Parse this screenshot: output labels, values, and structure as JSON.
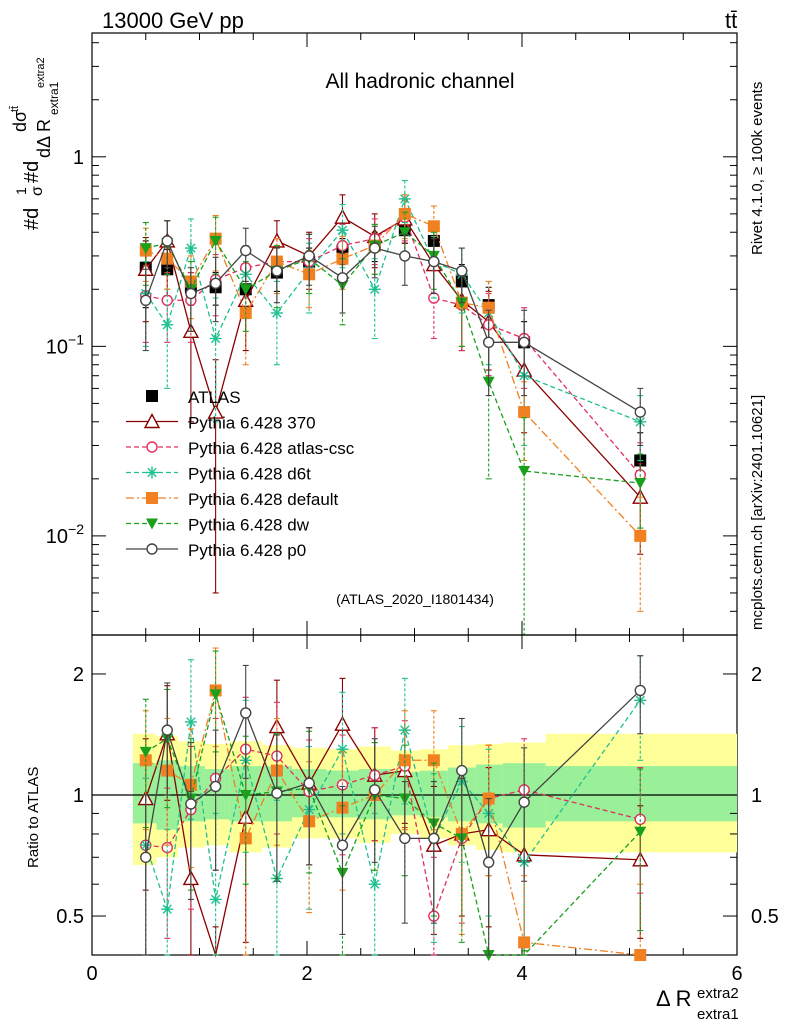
{
  "header": {
    "energy_label": "13000 GeV pp",
    "process_label": "tt̄"
  },
  "side_labels": {
    "rivet": "Rivet 4.1.0, ≥ 100k events",
    "mcplots": "mcplots.cern.ch [arXiv:2401.10621]"
  },
  "chart_data": [
    {
      "type": "line",
      "panel": "main",
      "title": "All hadronic channel",
      "analysis_tag": "(ATLAS_2020_I1801434)",
      "ylabel": "#d1/σ#dd σ^tt̄ / dΔ R_extra1^extra2",
      "yscale": "log",
      "ylim": [
        0.003,
        4.5
      ],
      "xlim": [
        0,
        6
      ],
      "y_ticks": [
        {
          "value": 1,
          "label": "1"
        },
        {
          "value": 0.1,
          "label": "10−1"
        },
        {
          "value": 0.01,
          "label": "10−2"
        }
      ],
      "legend": {
        "placement": "bottom-left"
      },
      "x": [
        0.5,
        0.7,
        0.92,
        1.15,
        1.43,
        1.72,
        2.02,
        2.33,
        2.63,
        2.91,
        3.18,
        3.44,
        3.69,
        4.02,
        5.1
      ],
      "series": [
        {
          "name": "ATLAS",
          "color": "#000000",
          "marker": "square-filled",
          "line": "none",
          "values": [
            0.26,
            0.255,
            0.205,
            0.205,
            0.2,
            0.245,
            0.28,
            0.32,
            0.34,
            0.41,
            0.36,
            0.22,
            0.165,
            0.105,
            0.025
          ],
          "errors": [
            0.1,
            0.07,
            0.04,
            0.04,
            0.05,
            0.05,
            0.05,
            0.05,
            0.06,
            0.06,
            0.06,
            0.05,
            0.04,
            0.03,
            0.01
          ]
        },
        {
          "name": "Pythia 6.428 370",
          "color": "#8b0000",
          "marker": "triangle-open",
          "line": "solid",
          "values": [
            0.255,
            0.36,
            0.12,
            0.045,
            0.175,
            0.36,
            0.3,
            0.48,
            0.38,
            0.47,
            0.27,
            0.175,
            0.135,
            0.075,
            0.016
          ],
          "errors": [
            0.12,
            0.1,
            0.08,
            0.04,
            0.08,
            0.1,
            0.1,
            0.15,
            0.12,
            0.12,
            0.1,
            0.08,
            0.06,
            0.04,
            0.008
          ]
        },
        {
          "name": "Pythia 6.428 atlas-csc",
          "color": "#e0305f",
          "marker": "circle-open",
          "line": "dashed",
          "values": [
            0.185,
            0.175,
            0.175,
            0.225,
            0.26,
            0.28,
            0.28,
            0.34,
            0.37,
            0.48,
            0.18,
            0.165,
            0.13,
            0.11,
            0.021
          ],
          "errors": [
            0.08,
            0.07,
            0.07,
            0.08,
            0.08,
            0.09,
            0.09,
            0.1,
            0.1,
            0.12,
            0.07,
            0.07,
            0.06,
            0.05,
            0.01
          ]
        },
        {
          "name": "Pythia 6.428 d6t",
          "color": "#20c090",
          "marker": "star",
          "line": "dashed",
          "values": [
            0.19,
            0.13,
            0.33,
            0.11,
            0.24,
            0.15,
            0.25,
            0.41,
            0.2,
            0.6,
            0.28,
            0.24,
            0.15,
            0.07,
            0.04
          ],
          "errors": [
            0.09,
            0.07,
            0.14,
            0.07,
            0.1,
            0.07,
            0.1,
            0.15,
            0.09,
            0.15,
            0.1,
            0.09,
            0.07,
            0.04,
            0.015
          ]
        },
        {
          "name": "Pythia 6.428 default",
          "color": "#f08020",
          "marker": "square-filled",
          "line": "dashdot",
          "values": [
            0.32,
            0.29,
            0.22,
            0.37,
            0.15,
            0.28,
            0.24,
            0.29,
            0.34,
            0.5,
            0.43,
            0.17,
            0.16,
            0.045,
            0.01
          ],
          "errors": [
            0.1,
            0.09,
            0.08,
            0.12,
            0.07,
            0.09,
            0.08,
            0.09,
            0.1,
            0.13,
            0.12,
            0.07,
            0.06,
            0.02,
            0.006
          ]
        },
        {
          "name": "Pythia 6.428 dw",
          "color": "#1aa01a",
          "marker": "triangle-down-filled",
          "line": "dashed",
          "values": [
            0.33,
            0.35,
            0.2,
            0.36,
            0.2,
            0.25,
            0.29,
            0.21,
            0.34,
            0.4,
            0.3,
            0.17,
            0.065,
            0.022,
            0.019
          ],
          "errors": [
            0.12,
            0.11,
            0.08,
            0.12,
            0.08,
            0.09,
            0.1,
            0.08,
            0.1,
            0.11,
            0.1,
            0.07,
            0.045,
            0.02,
            0.008
          ]
        },
        {
          "name": "Pythia 6.428 p0",
          "color": "#444444",
          "marker": "circle-open",
          "line": "solid",
          "values": [
            0.175,
            0.36,
            0.19,
            0.215,
            0.32,
            0.25,
            0.3,
            0.23,
            0.33,
            0.3,
            0.28,
            0.25,
            0.105,
            0.105,
            0.045
          ],
          "errors": [
            0.08,
            0.1,
            0.07,
            0.08,
            0.1,
            0.08,
            0.09,
            0.08,
            0.1,
            0.09,
            0.09,
            0.08,
            0.05,
            0.05,
            0.015
          ]
        }
      ]
    },
    {
      "type": "line",
      "panel": "ratio",
      "ylabel": "Ratio to ATLAS",
      "xlabel": "Δ R extra1 extra2",
      "xlabel_main": "Δ R",
      "xlabel_sup": "extra2",
      "xlabel_sub": "extra1",
      "yscale": "log",
      "ylim": [
        0.4,
        2.5
      ],
      "xlim": [
        0,
        6
      ],
      "y_ticks": [
        {
          "value": 0.5,
          "label": "0.5"
        },
        {
          "value": 1,
          "label": "1"
        },
        {
          "value": 2,
          "label": "2"
        }
      ],
      "x_ticks": [
        {
          "value": 0,
          "label": "0"
        },
        {
          "value": 2,
          "label": "2"
        },
        {
          "value": 4,
          "label": "4"
        },
        {
          "value": 6,
          "label": "6"
        }
      ],
      "reference_line": 1,
      "band_bins": [
        0.38,
        0.6,
        0.8,
        1.05,
        1.28,
        1.58,
        1.86,
        2.18,
        2.48,
        2.78,
        3.05,
        3.31,
        3.57,
        3.82,
        4.22,
        6.0
      ],
      "band_inner_up": [
        1.2,
        1.22,
        1.18,
        1.16,
        1.18,
        1.18,
        1.16,
        1.15,
        1.16,
        1.14,
        1.15,
        1.17,
        1.19,
        1.2,
        1.18
      ],
      "band_inner_down": [
        0.85,
        0.82,
        0.86,
        0.87,
        0.86,
        0.86,
        0.88,
        0.88,
        0.87,
        0.89,
        0.88,
        0.86,
        0.85,
        0.83,
        0.86
      ],
      "band_outer_up": [
        1.42,
        1.4,
        1.36,
        1.34,
        1.36,
        1.33,
        1.31,
        1.3,
        1.32,
        1.29,
        1.3,
        1.33,
        1.34,
        1.35,
        1.42
      ],
      "band_outer_down": [
        0.67,
        0.7,
        0.74,
        0.75,
        0.72,
        0.74,
        0.78,
        0.78,
        0.76,
        0.8,
        0.78,
        0.75,
        0.73,
        0.72,
        0.72
      ],
      "x": [
        0.5,
        0.7,
        0.92,
        1.15,
        1.43,
        1.72,
        2.02,
        2.33,
        2.63,
        2.91,
        3.18,
        3.44,
        3.69,
        4.02,
        5.1
      ],
      "series": [
        {
          "name": "Pythia 6.428 370",
          "color": "#8b0000",
          "marker": "triangle-open",
          "line": "solid",
          "values": [
            0.98,
            1.42,
            0.62,
            0.22,
            0.88,
            1.48,
            1.07,
            1.5,
            1.12,
            1.15,
            0.75,
            0.8,
            0.82,
            0.71,
            0.69
          ],
          "errors": [
            0.4,
            0.45,
            0.4,
            0.25,
            0.45,
            0.45,
            0.4,
            0.45,
            0.35,
            0.3,
            0.3,
            0.3,
            0.35,
            0.3,
            0.25
          ]
        },
        {
          "name": "Pythia 6.428 atlas-csc",
          "color": "#e0305f",
          "marker": "circle-open",
          "line": "dashed",
          "values": [
            0.75,
            0.74,
            0.92,
            1.1,
            1.3,
            1.25,
            1.02,
            1.06,
            1.12,
            1.18,
            0.5,
            0.78,
            0.98,
            1.03,
            0.87
          ],
          "errors": [
            0.35,
            0.3,
            0.4,
            0.45,
            0.45,
            0.45,
            0.35,
            0.35,
            0.35,
            0.35,
            0.2,
            0.3,
            0.35,
            0.35,
            0.3
          ]
        },
        {
          "name": "Pythia 6.428 d6t",
          "color": "#20c090",
          "marker": "star",
          "line": "dashed",
          "values": [
            0.75,
            0.52,
            1.52,
            0.55,
            1.22,
            0.62,
            0.92,
            1.3,
            0.6,
            1.45,
            0.78,
            1.08,
            0.9,
            0.68,
            1.72
          ],
          "errors": [
            0.35,
            0.3,
            0.65,
            0.35,
            0.5,
            0.35,
            0.4,
            0.5,
            0.3,
            0.5,
            0.35,
            0.4,
            0.4,
            0.3,
            0.5
          ]
        },
        {
          "name": "Pythia 6.428 default",
          "color": "#f08020",
          "marker": "square-filled",
          "line": "dashdot",
          "values": [
            1.22,
            1.15,
            1.06,
            1.82,
            0.78,
            1.15,
            0.86,
            0.93,
            1.0,
            1.22,
            1.22,
            0.8,
            0.98,
            0.43,
            0.4
          ],
          "errors": [
            0.4,
            0.4,
            0.4,
            0.5,
            0.4,
            0.4,
            0.35,
            0.35,
            0.35,
            0.4,
            0.4,
            0.35,
            0.35,
            0.2,
            0.2
          ]
        },
        {
          "name": "Pythia 6.428 dw",
          "color": "#1aa01a",
          "marker": "triangle-down-filled",
          "line": "dashed",
          "values": [
            1.28,
            1.38,
            0.98,
            1.78,
            1.0,
            1.02,
            1.04,
            0.64,
            1.0,
            0.98,
            0.85,
            0.78,
            0.4,
            0.21,
            0.81
          ],
          "errors": [
            0.45,
            0.45,
            0.4,
            0.5,
            0.4,
            0.4,
            0.4,
            0.3,
            0.35,
            0.35,
            0.35,
            0.35,
            0.3,
            0.2,
            0.35
          ]
        },
        {
          "name": "Pythia 6.428 p0",
          "color": "#444444",
          "marker": "circle-open",
          "line": "solid",
          "values": [
            0.7,
            1.45,
            0.95,
            1.05,
            1.6,
            1.01,
            1.07,
            0.75,
            1.03,
            0.78,
            0.78,
            1.15,
            0.68,
            0.96,
            1.82
          ],
          "errors": [
            0.3,
            0.45,
            0.4,
            0.4,
            0.5,
            0.4,
            0.4,
            0.3,
            0.35,
            0.3,
            0.3,
            0.4,
            0.3,
            0.35,
            0.4
          ]
        }
      ]
    }
  ]
}
